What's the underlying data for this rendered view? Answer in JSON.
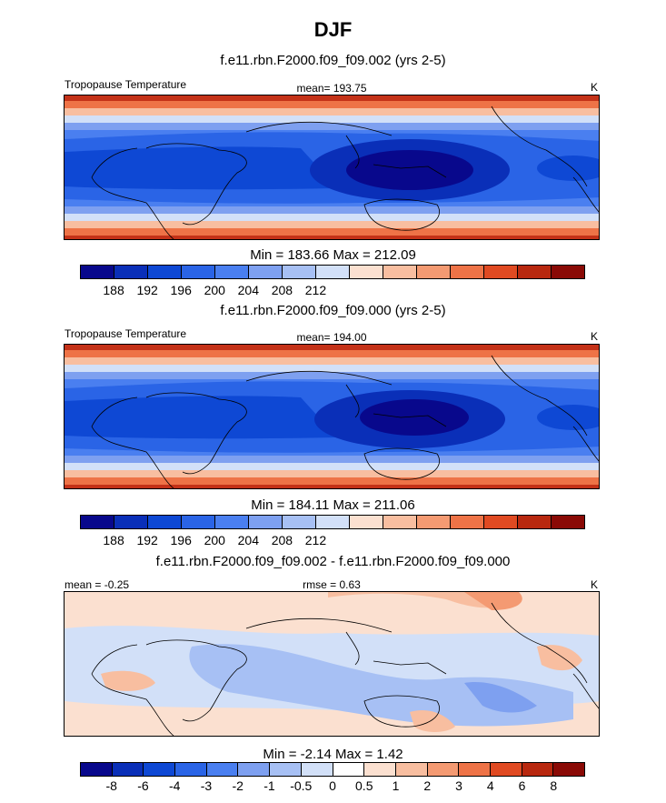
{
  "title": "DJF",
  "panels": [
    {
      "run_title": "f.e11.rbn.F2000.f09_f09.002 (yrs 2-5)",
      "left_label": "Tropopause Temperature",
      "center_label": "mean= 193.75",
      "units": "K",
      "min_max": "Min = 183.66 Max = 212.09",
      "colorbar_labels": [
        "188",
        "192",
        "196",
        "200",
        "204",
        "208",
        "212"
      ]
    },
    {
      "run_title": "f.e11.rbn.F2000.f09_f09.000 (yrs 2-5)",
      "left_label": "Tropopause Temperature",
      "center_label": "mean= 194.00",
      "units": "K",
      "min_max": "Min = 184.11 Max = 211.06",
      "colorbar_labels": [
        "188",
        "192",
        "196",
        "200",
        "204",
        "208",
        "212"
      ]
    },
    {
      "run_title": "f.e11.rbn.F2000.f09_f09.002 - f.e11.rbn.F2000.f09_f09.000",
      "left_label": "mean =  -0.25",
      "center_label": "rmse =   0.63",
      "units": "K",
      "min_max": "Min =  -2.14 Max =   1.42",
      "colorbar_labels": [
        "-8",
        "-6",
        "-4",
        "-3",
        "-2",
        "-1",
        "-0.5",
        "0",
        "0.5",
        "1",
        "2",
        "3",
        "4",
        "6",
        "8"
      ]
    }
  ],
  "chart_data": [
    {
      "type": "heatmap",
      "title": "f.e11.rbn.F2000.f09_f09.002 (yrs 2-5)",
      "variable": "Tropopause Temperature",
      "units": "K",
      "mean": 193.75,
      "min": 183.66,
      "max": 212.09,
      "levels": [
        186,
        188,
        190,
        192,
        194,
        196,
        198,
        200,
        202,
        204,
        206,
        208,
        210,
        212,
        214
      ],
      "colors": [
        "#08088c",
        "#0a2fb8",
        "#0e48d4",
        "#2a64e6",
        "#4a7ff0",
        "#7ea0f0",
        "#a7c0f4",
        "#d2e0f8",
        "#fbe0d0",
        "#f8bea0",
        "#f49a72",
        "#ee7347",
        "#e04a22",
        "#b8280f",
        "#8a0a06"
      ]
    },
    {
      "type": "heatmap",
      "title": "f.e11.rbn.F2000.f09_f09.000 (yrs 2-5)",
      "variable": "Tropopause Temperature",
      "units": "K",
      "mean": 194.0,
      "min": 184.11,
      "max": 211.06,
      "levels": [
        186,
        188,
        190,
        192,
        194,
        196,
        198,
        200,
        202,
        204,
        206,
        208,
        210,
        212,
        214
      ],
      "colors": [
        "#08088c",
        "#0a2fb8",
        "#0e48d4",
        "#2a64e6",
        "#4a7ff0",
        "#7ea0f0",
        "#a7c0f4",
        "#d2e0f8",
        "#fbe0d0",
        "#f8bea0",
        "#f49a72",
        "#ee7347",
        "#e04a22",
        "#b8280f",
        "#8a0a06"
      ]
    },
    {
      "type": "heatmap",
      "title": "f.e11.rbn.F2000.f09_f09.002 - f.e11.rbn.F2000.f09_f09.000",
      "units": "K",
      "mean": -0.25,
      "rmse": 0.63,
      "min": -2.14,
      "max": 1.42,
      "levels": [
        -8,
        -6,
        -4,
        -3,
        -2,
        -1,
        -0.5,
        0,
        0.5,
        1,
        2,
        3,
        4,
        6,
        8
      ],
      "colors": [
        "#08088c",
        "#0a2fb8",
        "#0e48d4",
        "#2a64e6",
        "#4a7ff0",
        "#7ea0f0",
        "#a7c0f4",
        "#d2e0f8",
        "#ffffff",
        "#fbe0d0",
        "#f8bea0",
        "#f49a72",
        "#ee7347",
        "#e04a22",
        "#b8280f",
        "#8a0a06"
      ]
    }
  ]
}
